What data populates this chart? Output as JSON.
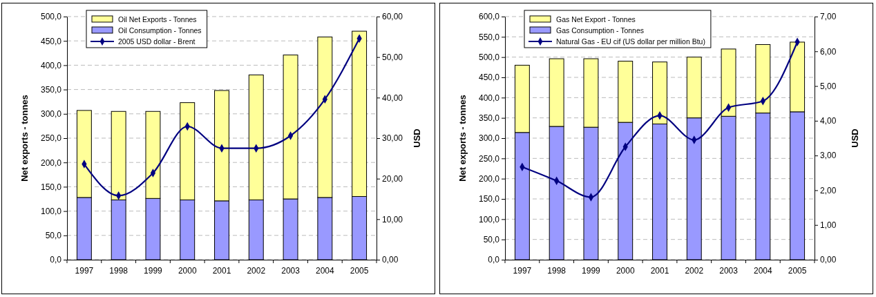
{
  "chart_data": [
    {
      "type": "bar",
      "stacked": true,
      "categories": [
        "1997",
        "1998",
        "1999",
        "2000",
        "2001",
        "2002",
        "2003",
        "2004",
        "2005"
      ],
      "ylabel": "Net exports - tonnes",
      "y2label": "USD",
      "legend": "top left",
      "grid": "y",
      "series": [
        {
          "name": "Oil Consumption - Tonnes",
          "color": "#9999ff",
          "values": [
            128,
            123,
            126,
            123,
            121,
            123,
            125,
            128,
            130
          ]
        },
        {
          "name": "Oil Net Exports - Tonnes",
          "color": "#ffff99",
          "values": [
            179,
            182,
            179,
            200,
            227,
            257,
            296,
            330,
            340
          ]
        },
        {
          "name": "2005 USD dollar - Brent",
          "type": "line",
          "axis": "y2",
          "color": "#000080",
          "marker": "diamond",
          "values": [
            23.6,
            15.8,
            21.4,
            32.9,
            27.5,
            27.5,
            30.6,
            39.6,
            54.6
          ]
        }
      ],
      "ylim": [
        0,
        500
      ],
      "yticks": [
        {
          "value": 0,
          "label": "0,0"
        },
        {
          "value": 50,
          "label": "50,0"
        },
        {
          "value": 100,
          "label": "100,0"
        },
        {
          "value": 150,
          "label": "150,0"
        },
        {
          "value": 200,
          "label": "200,0"
        },
        {
          "value": 250,
          "label": "250,0"
        },
        {
          "value": 300,
          "label": "300,0"
        },
        {
          "value": 350,
          "label": "350,0"
        },
        {
          "value": 400,
          "label": "400,0"
        },
        {
          "value": 450,
          "label": "450,0"
        },
        {
          "value": 500,
          "label": "500,0"
        }
      ],
      "y2lim": [
        0,
        60
      ],
      "y2ticks": [
        {
          "value": 0,
          "label": "0,00"
        },
        {
          "value": 10,
          "label": "10,00"
        },
        {
          "value": 20,
          "label": "20,00"
        },
        {
          "value": 30,
          "label": "30,00"
        },
        {
          "value": 40,
          "label": "40,00"
        },
        {
          "value": 50,
          "label": "50,00"
        },
        {
          "value": 60,
          "label": "60,00"
        }
      ]
    },
    {
      "type": "bar",
      "stacked": true,
      "categories": [
        "1997",
        "1998",
        "1999",
        "2000",
        "2001",
        "2002",
        "2003",
        "2004",
        "2005"
      ],
      "ylabel": "Net exports - tonnes",
      "y2label": "USD",
      "legend": "top left",
      "grid": "y",
      "series": [
        {
          "name": "Gas Consumption - Tonnes",
          "color": "#9999ff",
          "values": [
            314,
            329,
            327,
            339,
            335,
            350,
            354,
            362,
            365
          ]
        },
        {
          "name": "Gas Net Export - Tonnes",
          "color": "#ffff99",
          "values": [
            166,
            167,
            169,
            151,
            153,
            150,
            166,
            169,
            172
          ]
        },
        {
          "name": "Natural Gas - EU cif (US dollar per million Btu)",
          "type": "line",
          "axis": "y2",
          "color": "#000080",
          "marker": "diamond",
          "values": [
            2.67,
            2.27,
            1.8,
            3.25,
            4.15,
            3.45,
            4.38,
            4.57,
            6.27
          ]
        }
      ],
      "ylim": [
        0,
        600
      ],
      "yticks": [
        {
          "value": 0,
          "label": "0,0"
        },
        {
          "value": 50,
          "label": "50,0"
        },
        {
          "value": 100,
          "label": "100,0"
        },
        {
          "value": 150,
          "label": "150,0"
        },
        {
          "value": 200,
          "label": "200,0"
        },
        {
          "value": 250,
          "label": "250,0"
        },
        {
          "value": 300,
          "label": "300,0"
        },
        {
          "value": 350,
          "label": "350,0"
        },
        {
          "value": 400,
          "label": "400,0"
        },
        {
          "value": 450,
          "label": "450,0"
        },
        {
          "value": 500,
          "label": "500,0"
        },
        {
          "value": 550,
          "label": "550,0"
        },
        {
          "value": 600,
          "label": "600,0"
        }
      ],
      "y2lim": [
        0,
        7
      ],
      "y2ticks": [
        {
          "value": 0,
          "label": "0,00"
        },
        {
          "value": 1,
          "label": "1,00"
        },
        {
          "value": 2,
          "label": "2,00"
        },
        {
          "value": 3,
          "label": "3,00"
        },
        {
          "value": 4,
          "label": "4,00"
        },
        {
          "value": 5,
          "label": "5,00"
        },
        {
          "value": 6,
          "label": "6,00"
        },
        {
          "value": 7,
          "label": "7,00"
        }
      ]
    }
  ]
}
